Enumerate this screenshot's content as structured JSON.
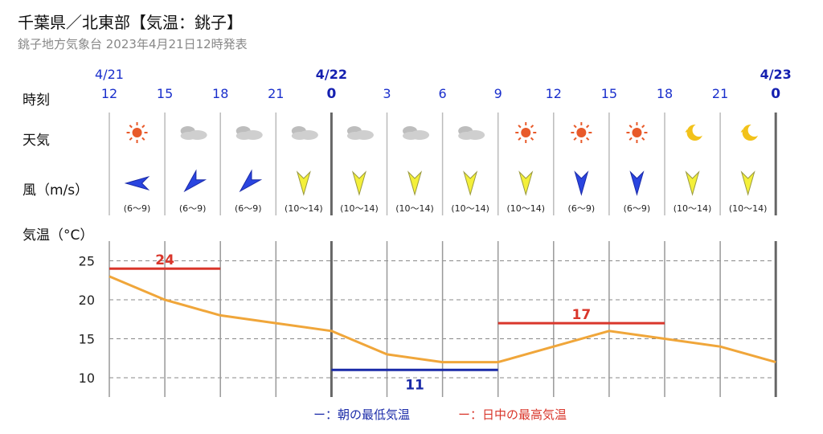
{
  "header": {
    "title": "千葉県／北東部【気温：銚子】",
    "subtitle": "銚子地方気象台 2023年4月21日12時発表"
  },
  "rows": {
    "time_label": "時刻",
    "weather_label": "天気",
    "wind_label": "風（m/s）",
    "temp_label": "気温（°C）"
  },
  "columns": [
    {
      "date": "4/21",
      "hour": "12",
      "day_start": false,
      "weather": "sun-icon",
      "wind_dir": "E",
      "wind_strong": false,
      "wind": "(6〜9)"
    },
    {
      "date": "",
      "hour": "15",
      "day_start": false,
      "weather": "cloud-icon",
      "wind_dir": "NE",
      "wind_strong": false,
      "wind": "(6〜9)"
    },
    {
      "date": "",
      "hour": "18",
      "day_start": false,
      "weather": "cloud-icon",
      "wind_dir": "NE",
      "wind_strong": false,
      "wind": "(6〜9)"
    },
    {
      "date": "",
      "hour": "21",
      "day_start": false,
      "weather": "cloud-icon",
      "wind_dir": "N",
      "wind_strong": true,
      "wind": "(10〜14)"
    },
    {
      "date": "4/22",
      "hour": "0",
      "day_start": true,
      "weather": "cloud-icon",
      "wind_dir": "N",
      "wind_strong": true,
      "wind": "(10〜14)"
    },
    {
      "date": "",
      "hour": "3",
      "day_start": false,
      "weather": "cloud-icon",
      "wind_dir": "N",
      "wind_strong": true,
      "wind": "(10〜14)"
    },
    {
      "date": "",
      "hour": "6",
      "day_start": false,
      "weather": "cloud-icon",
      "wind_dir": "N",
      "wind_strong": true,
      "wind": "(10〜14)"
    },
    {
      "date": "",
      "hour": "9",
      "day_start": false,
      "weather": "sun-icon",
      "wind_dir": "N",
      "wind_strong": true,
      "wind": "(10〜14)"
    },
    {
      "date": "",
      "hour": "12",
      "day_start": false,
      "weather": "sun-icon",
      "wind_dir": "N",
      "wind_strong": false,
      "wind": "(6〜9)"
    },
    {
      "date": "",
      "hour": "15",
      "day_start": false,
      "weather": "sun-icon",
      "wind_dir": "N",
      "wind_strong": false,
      "wind": "(6〜9)"
    },
    {
      "date": "",
      "hour": "18",
      "day_start": false,
      "weather": "moon-icon",
      "wind_dir": "N",
      "wind_strong": true,
      "wind": "(10〜14)"
    },
    {
      "date": "",
      "hour": "21",
      "day_start": false,
      "weather": "moon-icon",
      "wind_dir": "N",
      "wind_strong": true,
      "wind": "(10〜14)"
    },
    {
      "date": "4/23",
      "hour": "0",
      "day_start": true
    }
  ],
  "colors": {
    "temp_line": "#f0a63a",
    "high": "#d9362b",
    "low": "#1a2aa8",
    "wind_strong": "#f4f03a",
    "wind_weak": "#2a45e0",
    "sun": "#e85a2a",
    "cloud": "#cfcfcf",
    "moon": "#f2c21a"
  },
  "chart_data": {
    "type": "line",
    "title": "",
    "xlabel": "",
    "ylabel": "気温（°C）",
    "yticks": [
      10,
      15,
      20,
      25
    ],
    "ylim": [
      7,
      28
    ],
    "grid": true,
    "x": [
      "12",
      "15",
      "18",
      "21",
      "0",
      "3",
      "6",
      "9",
      "12",
      "15",
      "18",
      "21",
      "0"
    ],
    "series": [
      {
        "values": [
          23,
          20,
          18,
          17,
          16,
          13,
          12,
          12,
          14,
          16,
          15,
          14,
          12
        ]
      }
    ],
    "high_segment": [
      {
        "from_index": 0,
        "to_index": 2,
        "value": 24,
        "label": "24"
      },
      {
        "from_index": 7,
        "to_index": 10,
        "value": 17,
        "label": "17"
      }
    ],
    "low_segment": [
      {
        "from_index": 4,
        "to_index": 7,
        "value": 11,
        "label": "11"
      }
    ]
  },
  "legend": {
    "low": "ー：朝の最低気温",
    "high": "ー：日中の最高気温"
  }
}
